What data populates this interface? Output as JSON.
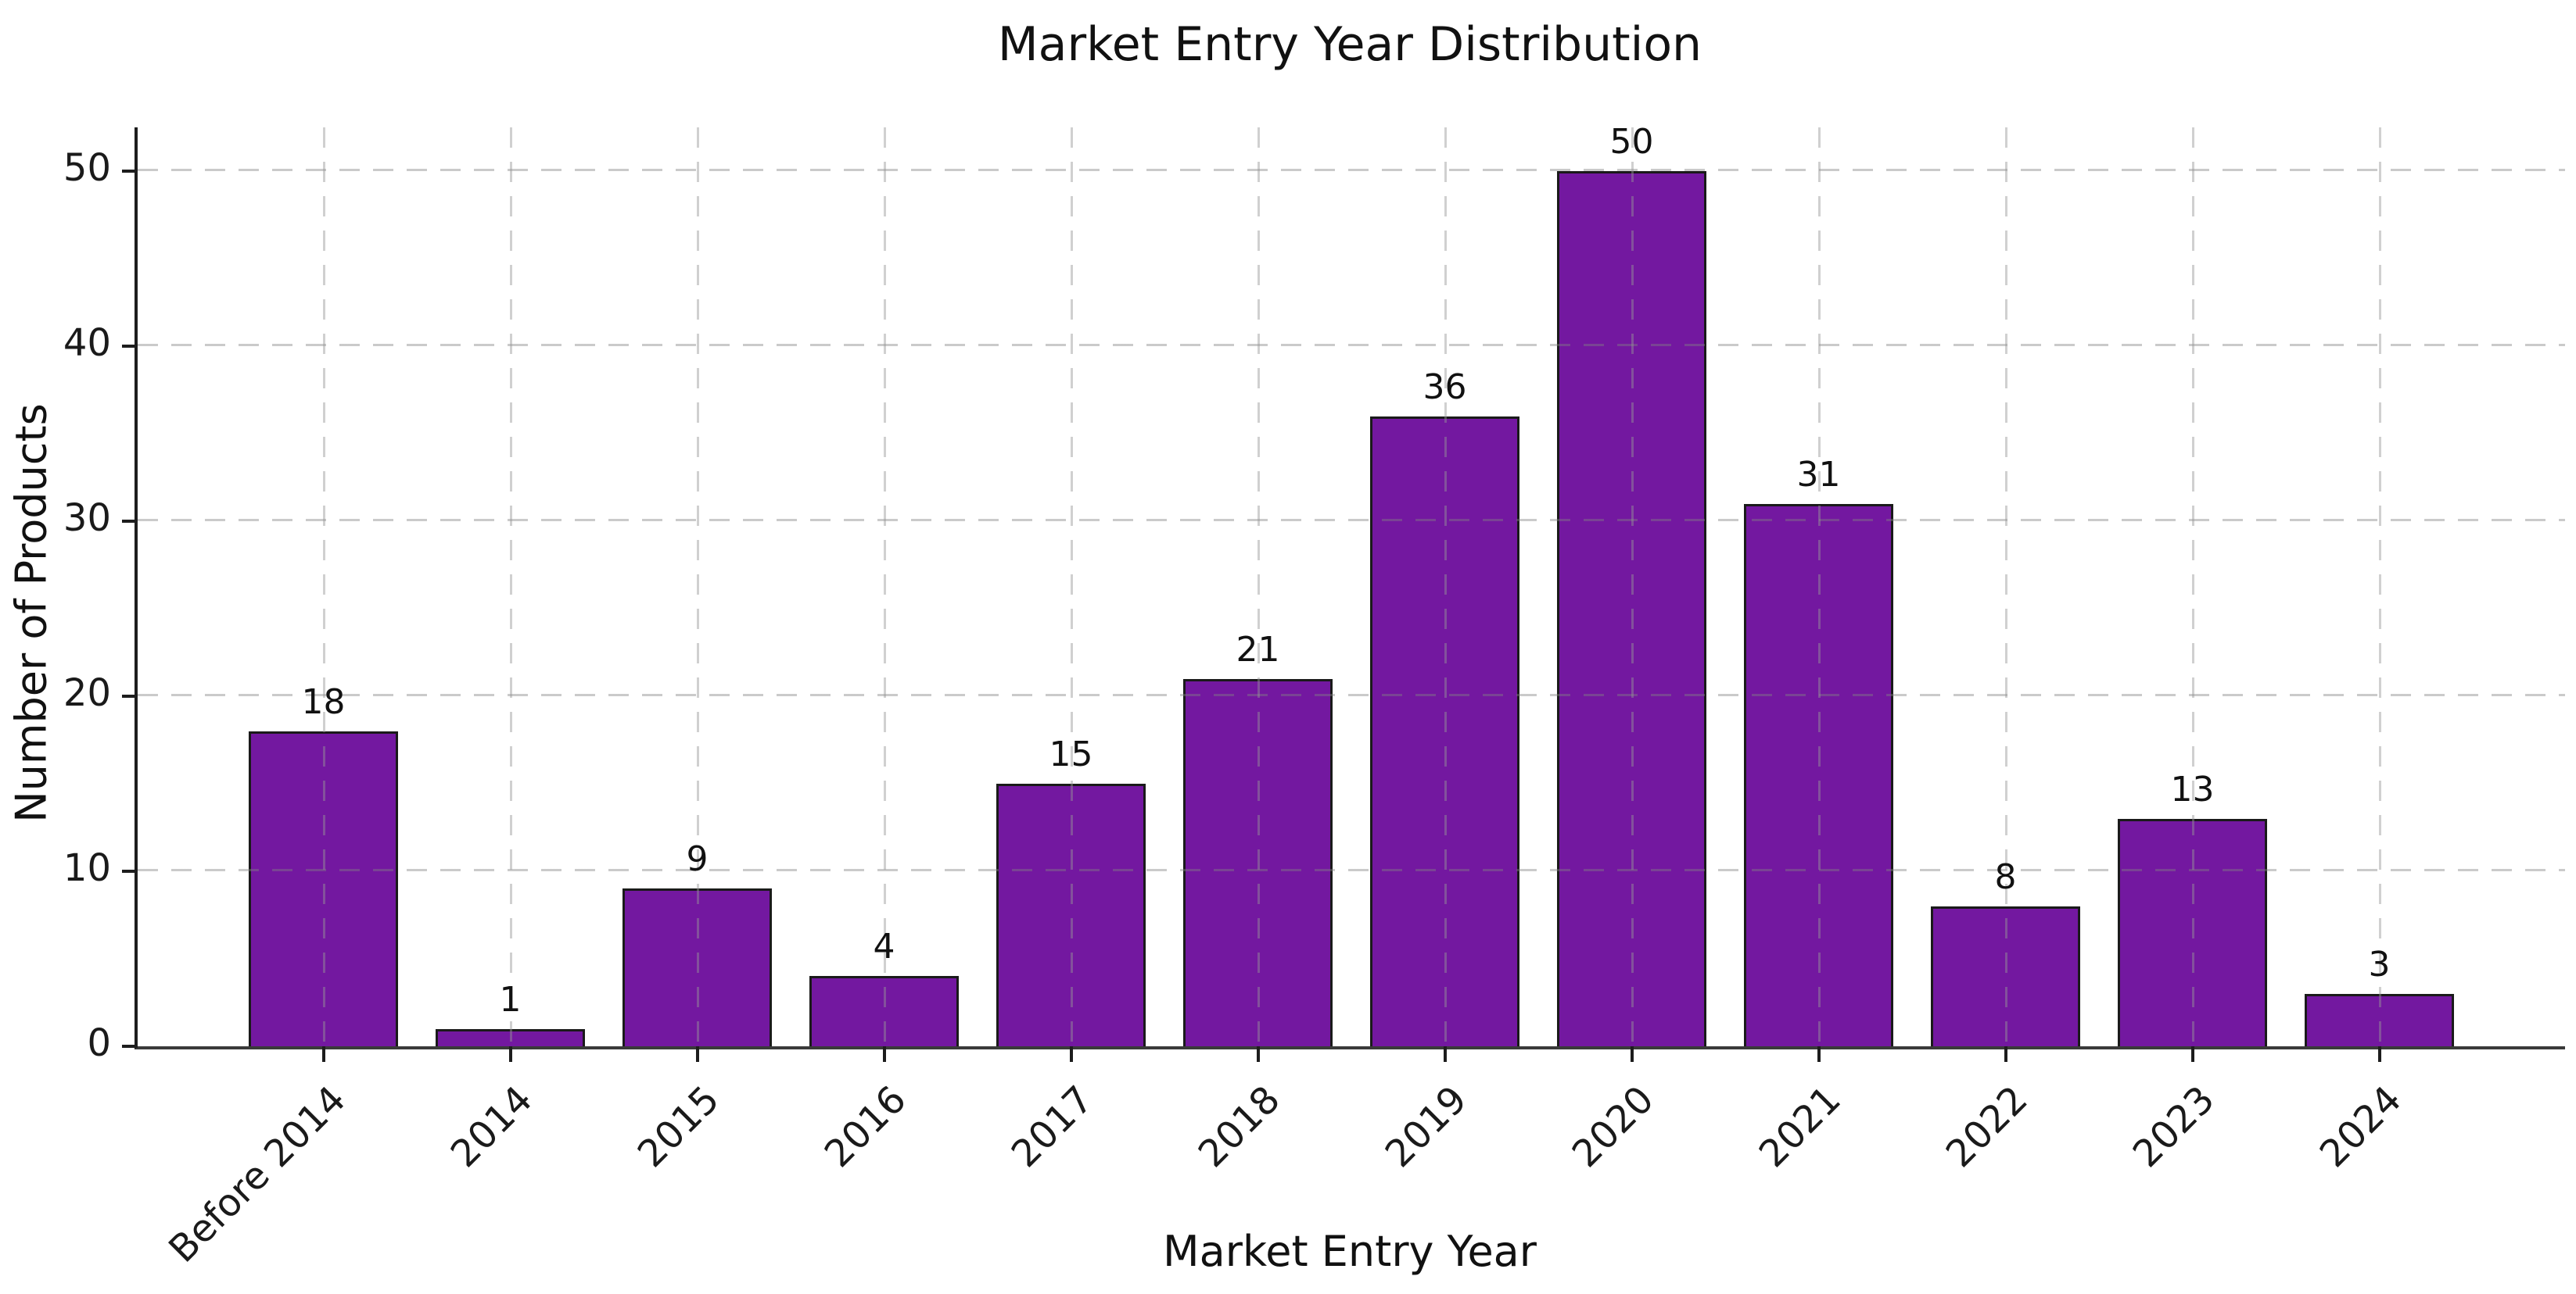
{
  "chart_data": {
    "type": "bar",
    "title": "Market Entry Year Distribution",
    "xlabel": "Market Entry Year",
    "ylabel": "Number of Products",
    "categories": [
      "Before 2014",
      "2014",
      "2015",
      "2016",
      "2017",
      "2018",
      "2019",
      "2020",
      "2021",
      "2022",
      "2023",
      "2024"
    ],
    "values": [
      18,
      1,
      9,
      4,
      15,
      21,
      36,
      50,
      31,
      8,
      13,
      3
    ],
    "bar_value_labels": [
      "18",
      "1",
      "9",
      "4",
      "15",
      "21",
      "36",
      "50",
      "31",
      "8",
      "13",
      "3"
    ],
    "yticks": [
      0,
      10,
      20,
      30,
      40,
      50
    ],
    "ylim": [
      0,
      52.5
    ],
    "grid": "dashed, both axes, drawn over bars",
    "legend": "none",
    "x_tick_rotation_deg": 45,
    "colors": {
      "bar_fill": "#7318A0",
      "bar_edge": "#1a1a1a",
      "text": "#1a1a1a",
      "background": "#ffffff"
    }
  }
}
